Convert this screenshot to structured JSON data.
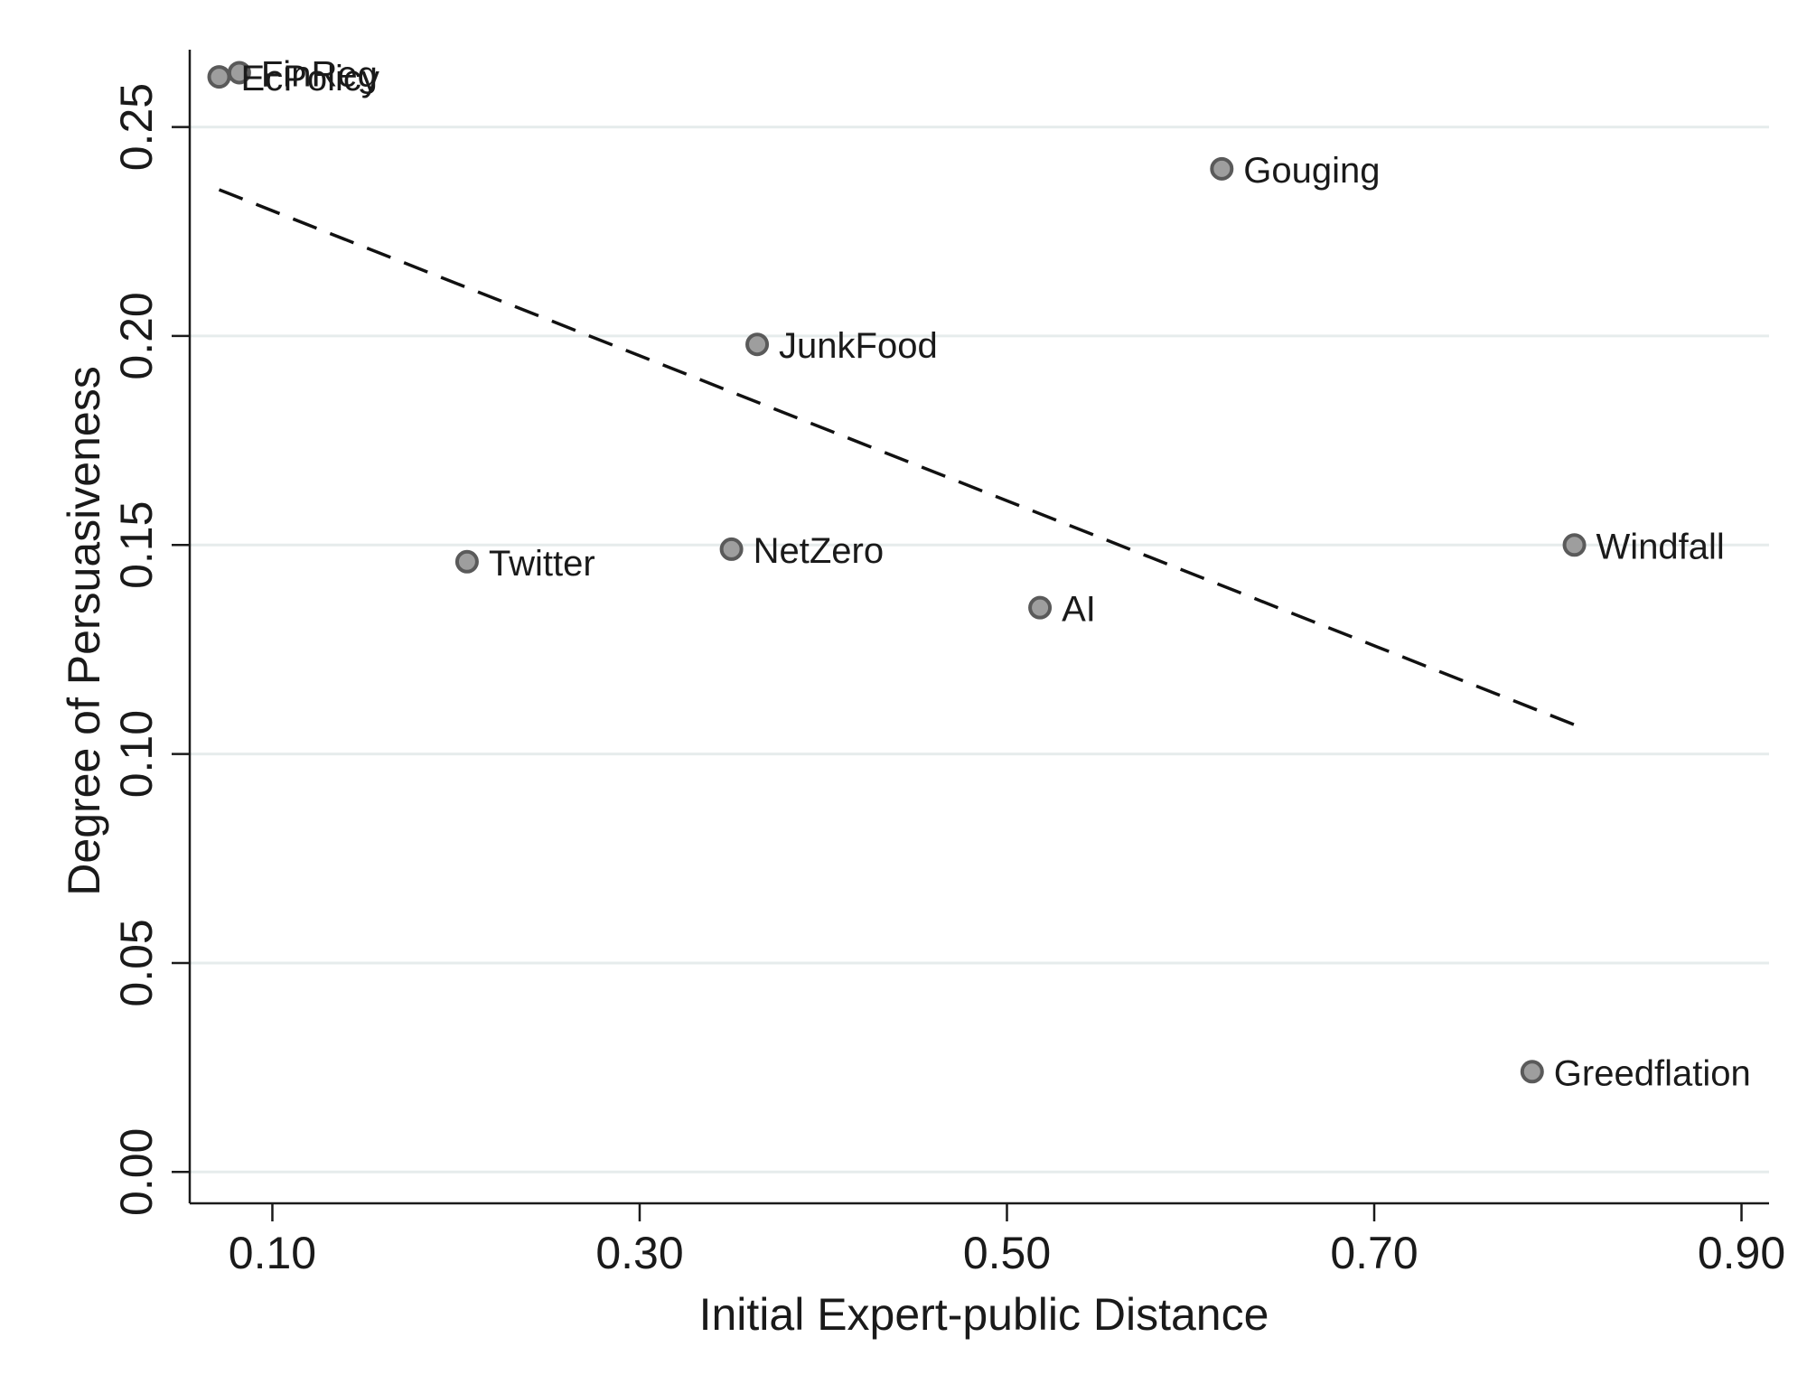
{
  "chart_data": {
    "type": "scatter",
    "xlabel": "Initial Expert-public Distance",
    "ylabel": "Degree of Persuasiveness",
    "xlim": [
      0.055,
      0.915
    ],
    "ylim": [
      -0.0075,
      0.2685
    ],
    "x_ticks": [
      0.1,
      0.3,
      0.5,
      0.7,
      0.9
    ],
    "x_tick_labels": [
      "0.10",
      "0.30",
      "0.50",
      "0.70",
      "0.90"
    ],
    "y_ticks": [
      0.0,
      0.05,
      0.1,
      0.15,
      0.2,
      0.25
    ],
    "y_tick_labels": [
      "0.00",
      "0.05",
      "0.10",
      "0.15",
      "0.20",
      "0.25"
    ],
    "grid": "horizontal",
    "points": [
      {
        "label": "EcPolicy",
        "x": 0.071,
        "y": 0.262
      },
      {
        "label": "FinReg",
        "x": 0.082,
        "y": 0.263
      },
      {
        "label": "Gouging",
        "x": 0.617,
        "y": 0.24
      },
      {
        "label": "JunkFood",
        "x": 0.364,
        "y": 0.198
      },
      {
        "label": "Twitter",
        "x": 0.206,
        "y": 0.146
      },
      {
        "label": "NetZero",
        "x": 0.35,
        "y": 0.149
      },
      {
        "label": "AI",
        "x": 0.518,
        "y": 0.135
      },
      {
        "label": "Windfall",
        "x": 0.809,
        "y": 0.15
      },
      {
        "label": "Greedflation",
        "x": 0.786,
        "y": 0.024
      }
    ],
    "fit_line": {
      "style": "dashed",
      "x": [
        0.071,
        0.809
      ],
      "y": [
        0.235,
        0.107
      ]
    },
    "colors": {
      "marker_fill": "#9e9e9e",
      "marker_stroke": "#5a5a5a",
      "grid": "#e6ecec",
      "axis": "#1a1a1a"
    }
  }
}
